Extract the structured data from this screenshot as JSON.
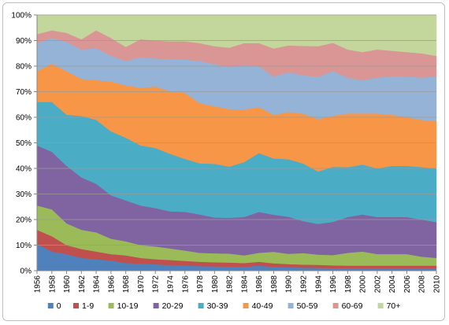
{
  "chart_data": {
    "type": "area",
    "stacked": true,
    "percent": true,
    "title": "",
    "xlabel": "",
    "ylabel": "",
    "ylim": [
      0,
      100
    ],
    "y_ticks": [
      0,
      10,
      20,
      30,
      40,
      50,
      60,
      70,
      80,
      90,
      100
    ],
    "y_tick_labels": [
      "0%",
      "10%",
      "20%",
      "30%",
      "40%",
      "50%",
      "60%",
      "70%",
      "80%",
      "90%",
      "100%"
    ],
    "x_ticks": [
      1956,
      1958,
      1960,
      1962,
      1964,
      1966,
      1968,
      1970,
      1972,
      1974,
      1976,
      1978,
      1980,
      1982,
      1984,
      1986,
      1988,
      1990,
      1992,
      1994,
      1996,
      1998,
      2000,
      2002,
      2004,
      2006,
      2008,
      2010
    ],
    "x_tick_labels": [
      "1956",
      "1958",
      "1960",
      "1962",
      "1964",
      "1966",
      "1968",
      "1970",
      "1972",
      "1974",
      "1976",
      "1978",
      "1980",
      "1982",
      "1984",
      "1986",
      "1988",
      "1990",
      "1992",
      "1994",
      "1996",
      "1998",
      "2000",
      "2002",
      "2004",
      "2006",
      "2008",
      "2010"
    ],
    "legend_position": "bottom",
    "x": [
      1956,
      1958,
      1960,
      1962,
      1964,
      1966,
      1968,
      1970,
      1972,
      1974,
      1976,
      1978,
      1980,
      1982,
      1984,
      1986,
      1988,
      1990,
      1992,
      1994,
      1996,
      1998,
      2000,
      2002,
      2004,
      2006,
      2008,
      2010
    ],
    "series": [
      {
        "name": "0",
        "color": "#4f81bd",
        "values": [
          10.5,
          7.5,
          6.5,
          5.0,
          4.5,
          4.0,
          3.0,
          2.8,
          2.5,
          2.2,
          2.0,
          1.8,
          1.7,
          1.6,
          1.5,
          2.0,
          1.5,
          1.3,
          1.2,
          1.1,
          1.0,
          1.0,
          1.0,
          1.0,
          1.0,
          1.0,
          1.0,
          1.0
        ]
      },
      {
        "name": "1-9",
        "color": "#c0504d",
        "values": [
          5.5,
          6.0,
          3.5,
          3.5,
          3.0,
          2.5,
          3.0,
          2.2,
          2.0,
          2.0,
          1.8,
          1.7,
          1.6,
          1.6,
          1.5,
          1.5,
          1.4,
          1.3,
          1.2,
          1.2,
          1.1,
          1.0,
          1.0,
          1.0,
          1.0,
          1.0,
          1.0,
          1.0
        ]
      },
      {
        "name": "10-19",
        "color": "#9bbb59",
        "values": [
          9.5,
          10.5,
          8.5,
          7.5,
          7.5,
          6.0,
          5.5,
          5.0,
          5.0,
          4.5,
          4.0,
          3.5,
          3.5,
          3.5,
          3.0,
          3.5,
          4.5,
          4.0,
          4.5,
          4.0,
          4.0,
          5.0,
          5.5,
          4.5,
          4.5,
          4.5,
          3.5,
          3.0
        ]
      },
      {
        "name": "20-29",
        "color": "#8064a2",
        "values": [
          23.5,
          22.5,
          22.5,
          20.5,
          19.0,
          17.0,
          16.0,
          15.5,
          15.0,
          14.5,
          15.0,
          15.0,
          14.0,
          14.0,
          15.0,
          16.0,
          14.5,
          14.5,
          12.5,
          12.0,
          13.0,
          14.0,
          14.5,
          14.5,
          14.5,
          14.5,
          14.5,
          14.0
        ]
      },
      {
        "name": "30-39",
        "color": "#4bacc6",
        "values": [
          17.0,
          19.5,
          20.0,
          24.0,
          25.0,
          25.0,
          24.5,
          23.5,
          23.5,
          22.5,
          20.5,
          20.0,
          21.0,
          20.0,
          21.5,
          23.0,
          22.0,
          22.5,
          22.5,
          20.5,
          21.5,
          19.5,
          19.5,
          19.0,
          20.0,
          20.0,
          20.5,
          21.0
        ]
      },
      {
        "name": "40-49",
        "color": "#f79646",
        "values": [
          12.0,
          15.0,
          17.0,
          14.5,
          15.5,
          19.5,
          20.5,
          22.5,
          24.0,
          24.5,
          25.5,
          23.5,
          22.5,
          22.5,
          20.5,
          18.0,
          17.0,
          18.5,
          19.5,
          20.5,
          20.0,
          21.0,
          20.0,
          21.5,
          20.0,
          19.0,
          18.5,
          18.5
        ]
      },
      {
        "name": "50-59",
        "color": "#95b3d7",
        "values": [
          11.0,
          10.0,
          11.5,
          11.5,
          12.5,
          10.0,
          9.5,
          12.0,
          11.0,
          12.5,
          13.0,
          16.5,
          16.5,
          16.5,
          17.5,
          16.0,
          15.0,
          15.5,
          15.0,
          16.5,
          17.5,
          14.0,
          13.0,
          14.0,
          15.0,
          16.0,
          16.5,
          17.5
        ]
      },
      {
        "name": "60-69",
        "color": "#d99694",
        "values": [
          3.5,
          3.0,
          3.5,
          4.0,
          7.0,
          7.0,
          5.5,
          7.0,
          7.0,
          7.0,
          7.0,
          7.0,
          7.0,
          7.5,
          8.5,
          9.0,
          11.0,
          10.5,
          11.5,
          12.0,
          11.0,
          11.0,
          11.0,
          11.0,
          10.0,
          9.5,
          9.5,
          8.0
        ]
      },
      {
        "name": "70+",
        "color": "#c3d69b",
        "values": [
          7.5,
          6.0,
          7.0,
          9.5,
          6.0,
          9.0,
          12.5,
          9.5,
          10.0,
          10.3,
          10.2,
          11.0,
          12.2,
          12.8,
          11.0,
          11.0,
          13.1,
          11.9,
          12.1,
          12.2,
          10.9,
          13.5,
          14.5,
          13.5,
          14.0,
          14.5,
          15.0,
          16.0
        ]
      }
    ]
  }
}
